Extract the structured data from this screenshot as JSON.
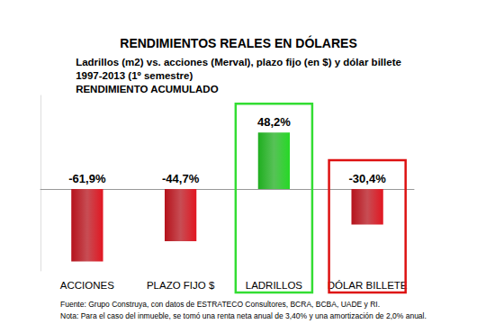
{
  "chart_data": {
    "type": "bar",
    "title": "RENDIMIENTOS REALES EN DÓLARES",
    "subtitle": [
      "Ladrillos (m2) vs. acciones (Merval), plazo fijo (en $) y dólar billete",
      "1997-2013 (1º semestre)",
      "RENDIMIENTO ACUMULADO"
    ],
    "categories": [
      "ACCIONES",
      "PLAZO FIJO $",
      "LADRILLOS",
      "DÓLAR BILLETE"
    ],
    "values": [
      -61.9,
      -44.7,
      48.2,
      -30.4
    ],
    "value_labels": [
      "-61,9%",
      "-44,7%",
      "48,2%",
      "-30,4%"
    ],
    "colors": [
      "#b5121b",
      "#b5121b",
      "#1fae1f",
      "#b5121b"
    ],
    "ylim": [
      -70,
      80
    ],
    "grid": false,
    "data_labels": true,
    "tick_labels": "x",
    "source": "Fuente: Grupo Construya, con datos de ESTRATECO Consultores, BCRA, BCBA, UADE y RI.",
    "note": "Nota: Para el caso del inmueble, se tomó una renta neta anual de 3,40% y una amortización de 2,0% anual."
  }
}
